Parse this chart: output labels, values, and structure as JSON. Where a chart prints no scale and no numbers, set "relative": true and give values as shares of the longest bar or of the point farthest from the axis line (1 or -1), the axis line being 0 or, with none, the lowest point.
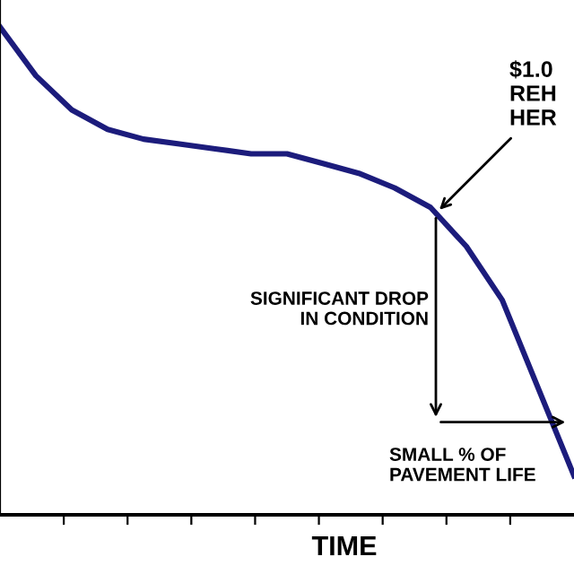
{
  "chart_data": {
    "type": "line",
    "relative": true,
    "xlabel": "TIME",
    "categories": [
      null,
      null,
      null,
      null,
      null,
      null,
      null,
      null,
      null,
      null,
      null,
      null,
      null,
      null,
      null,
      null,
      null
    ],
    "series": [
      {
        "color": "#1c1c7c",
        "values": [
          1.0,
          0.9,
          0.83,
          0.79,
          0.77,
          0.76,
          0.75,
          0.74,
          0.74,
          0.72,
          0.7,
          0.67,
          0.63,
          0.55,
          0.44,
          0.26,
          0.08
        ]
      }
    ],
    "annotations": [
      "$1.0\nREH\nHER",
      "SIGNIFICANT DROP\nIN CONDITION",
      "SMALL % OF\nPAVEMENT LIFE"
    ],
    "grid": false,
    "legend": false,
    "marker": "none",
    "line_style": "solid"
  }
}
